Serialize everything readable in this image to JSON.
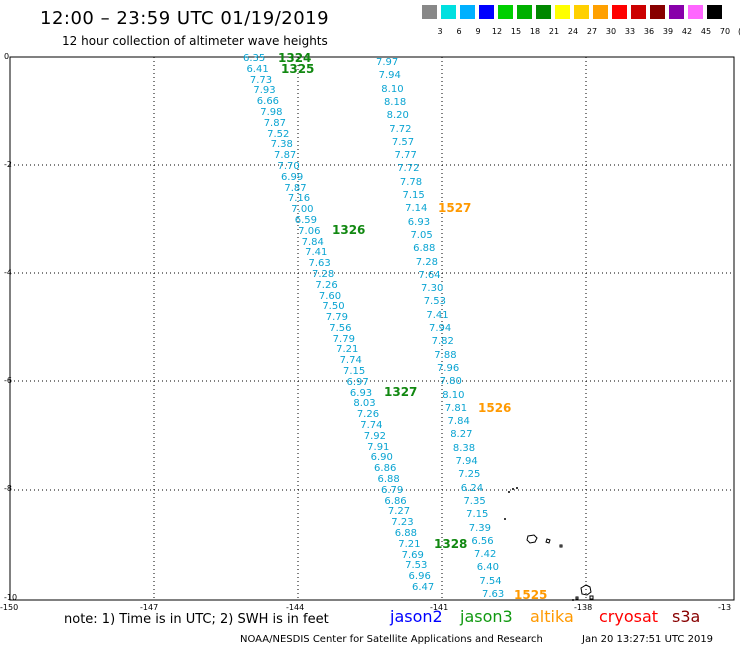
{
  "title": "12:00 – 23:59 UTC 01/19/2019",
  "subtitle": "12 hour collection of altimeter wave heights",
  "colorbar": {
    "colors": [
      "#888888",
      "#00e0e0",
      "#00b0ff",
      "#0000ff",
      "#00d000",
      "#00b000",
      "#008800",
      "#ffff00",
      "#ffd000",
      "#ffa000",
      "#ff0000",
      "#cc0000",
      "#880000",
      "#8800aa",
      "#ff66ff",
      "#000000"
    ],
    "labels": [
      "3",
      "6",
      "9",
      "12",
      "15",
      "18",
      "21",
      "24",
      "27",
      "30",
      "33",
      "36",
      "39",
      "42",
      "45",
      "70",
      "(ft)"
    ]
  },
  "map": {
    "x_tick_labels": [
      "-150",
      "-147",
      "-144",
      "-141",
      "-138",
      "-13"
    ],
    "y_tick_labels": [
      "0",
      "-2",
      "-4",
      "-6",
      "-8",
      "-10"
    ]
  },
  "swh_values": {
    "track_west": [
      "6.35",
      "6.41",
      "7.73",
      "7.93",
      "6.66",
      "7.98",
      "7.87",
      "7.52",
      "7.38",
      "7.87",
      "7.70",
      "6.99",
      "7.87",
      "7.16",
      "7.00",
      "6.59",
      "7.06",
      "7.84",
      "7.41",
      "7.63",
      "7.28",
      "7.26",
      "7.60",
      "7.50",
      "7.79",
      "7.56",
      "7.79",
      "7.21",
      "7.74",
      "7.15",
      "6.97",
      "6.93",
      "8.03",
      "7.26",
      "7.74",
      "7.92",
      "7.91",
      "6.90",
      "6.86",
      "6.88",
      "6.79",
      "6.86",
      "7.27",
      "7.23",
      "6.88",
      "7.21",
      "7.69",
      "7.53",
      "6.96",
      "6.47"
    ],
    "track_east": [
      "7.97",
      "7.94",
      "8.10",
      "8.18",
      "8.20",
      "7.72",
      "7.57",
      "7.77",
      "7.72",
      "7.78",
      "7.15",
      "7.14",
      "6.93",
      "7.05",
      "6.88",
      "7.28",
      "7.64",
      "7.30",
      "7.53",
      "7.41",
      "7.94",
      "7.82",
      "7.88",
      "7.96",
      "7.80",
      "8.10",
      "7.81",
      "7.84",
      "8.27",
      "8.38",
      "7.94",
      "7.25",
      "6.24",
      "7.35",
      "7.15",
      "7.39",
      "6.56",
      "7.42",
      "6.40",
      "7.54",
      "7.63"
    ]
  },
  "pass_labels": [
    {
      "text": "1324",
      "color": "green"
    },
    {
      "text": "1325",
      "color": "green"
    },
    {
      "text": "1326",
      "color": "green"
    },
    {
      "text": "1327",
      "color": "green"
    },
    {
      "text": "1328",
      "color": "green"
    },
    {
      "text": "1527",
      "color": "orange"
    },
    {
      "text": "1526",
      "color": "orange"
    },
    {
      "text": "1525",
      "color": "orange"
    }
  ],
  "note": "note: 1) Time is in UTC; 2) SWH is in feet",
  "legend": [
    {
      "name": "jason2",
      "color": "#0000ff"
    },
    {
      "name": "jason3",
      "color": "#119911"
    },
    {
      "name": "altika",
      "color": "#ff9900"
    },
    {
      "name": "cryosat",
      "color": "#ff0000"
    },
    {
      "name": "s3a",
      "color": "#880000"
    }
  ],
  "footer": {
    "credit": "NOAA/NESDIS Center for Satellite Applications and Research",
    "timestamp": "Jan 20 13:27:51 UTC 2019"
  }
}
